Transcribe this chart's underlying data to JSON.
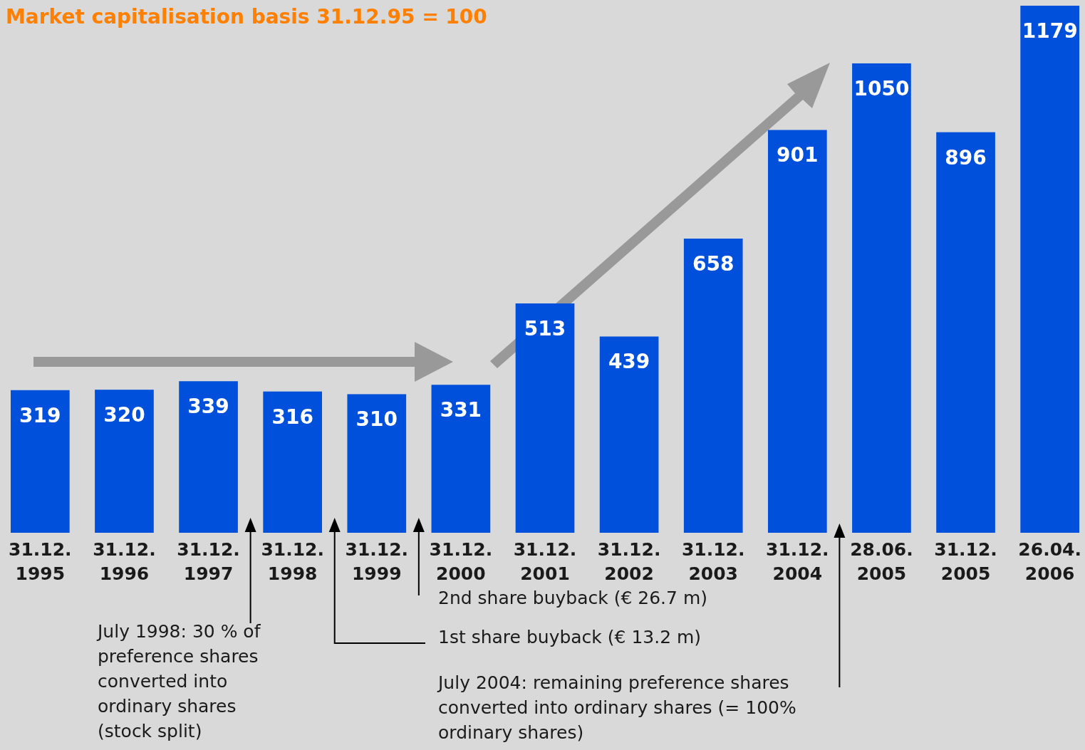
{
  "chart_data": {
    "type": "bar",
    "title": "Market capitalisation basis 31.12.95 = 100",
    "categories": [
      "31.12.\n1995",
      "31.12.\n1996",
      "31.12.\n1997",
      "31.12.\n1998",
      "31.12.\n1999",
      "31.12.\n2000",
      "31.12.\n2001",
      "31.12.\n2002",
      "31.12.\n2003",
      "31.12.\n2004",
      "28.06.\n2005",
      "31.12.\n2005",
      "26.04.\n2006"
    ],
    "values": [
      319,
      320,
      339,
      316,
      310,
      331,
      513,
      439,
      658,
      901,
      1050,
      896,
      1179
    ],
    "color": "#0050dc",
    "data_labels": true,
    "annotations": [
      "July 1998: 30 % of\npreference shares\nconverted into\nordinary shares\n(stock split)",
      "1st share buyback (€ 13.2 m)",
      "2nd share buyback (€ 26.7 m)",
      "July 2004: remaining preference shares\nconverted into ordinary shares (= 100%\nordinary shares)"
    ]
  }
}
